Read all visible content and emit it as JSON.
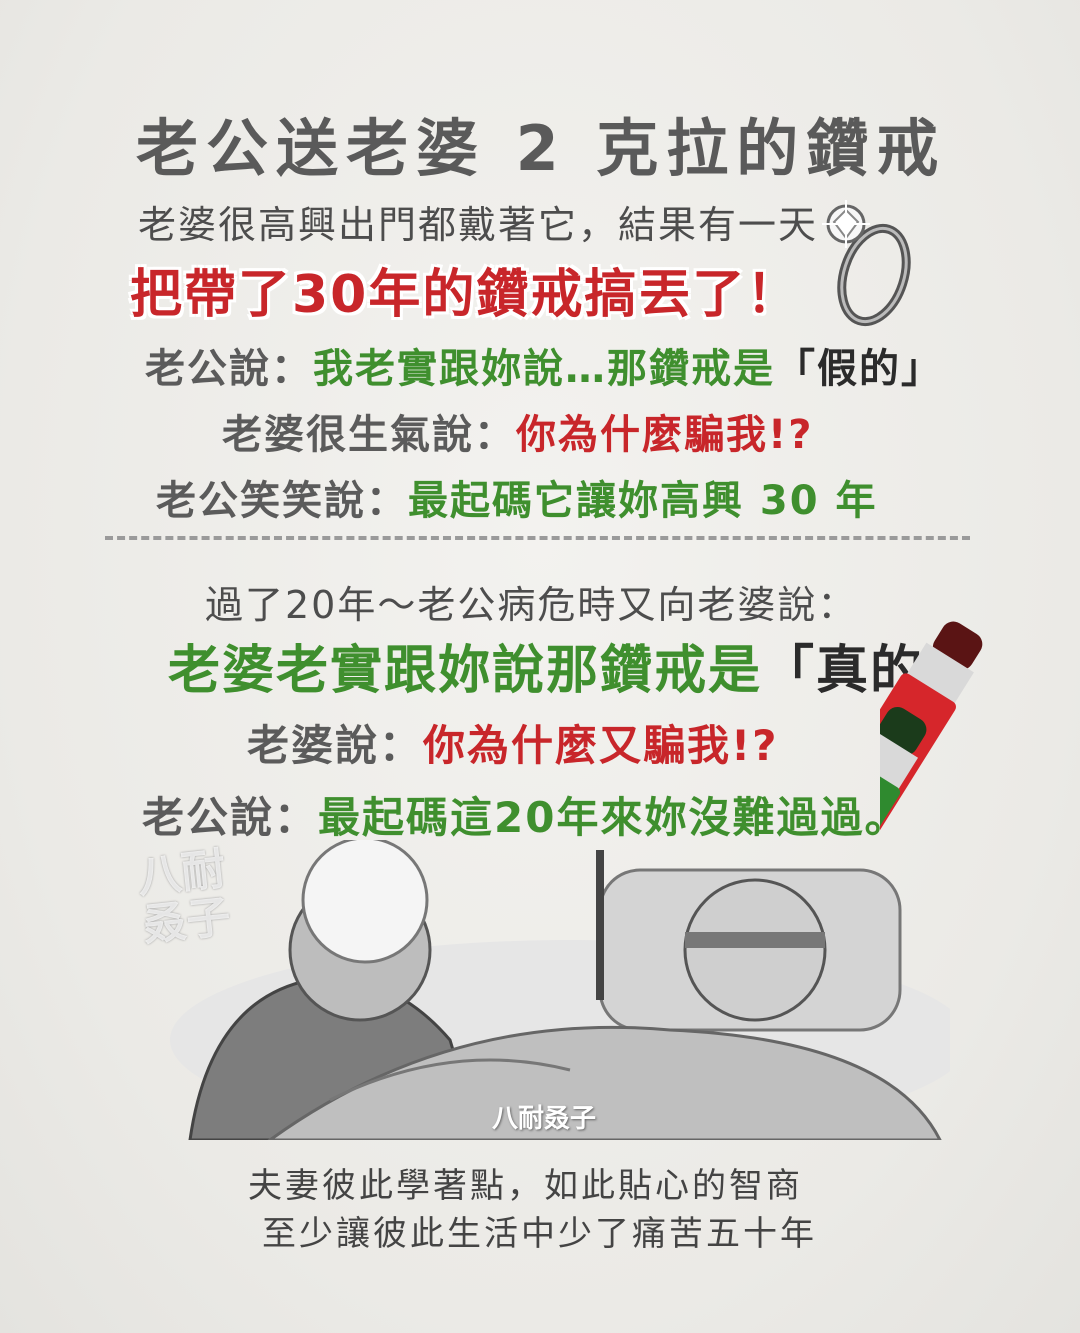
{
  "title": "老公送老婆 2 克拉的鑽戒",
  "intro": "老婆很高興出門都戴著它，結果有一天",
  "lost": "把帶了30年的鑽戒搞丟了！",
  "husband_says_1_label": "老公說：",
  "husband_says_1_text": "我老實跟妳說…那鑽戒是",
  "husband_says_1_quote": "「假的」",
  "wife_says_1_label": "老婆很生氣說：",
  "wife_says_1_text": "你為什麼騙我!?",
  "husband_says_2_label": "老公笑笑說：",
  "husband_says_2_text": "最起碼它讓妳高興 30 年",
  "part2_intro": "過了20年～老公病危時又向老婆說：",
  "part2_confess_text": "老婆老實跟妳說那鑽戒是",
  "part2_confess_quote": "「真的」",
  "wife_says_2_label": "老婆說：",
  "wife_says_2_text": "你為什麼又騙我!?",
  "husband_says_3_label": "老公說：",
  "husband_says_3_text": "最起碼這20年來妳沒難過過。",
  "caption_1": "夫妻彼此學著點，如此貼心的智商",
  "caption_2": "至少讓彼此生活中少了痛苦五十年",
  "watermark_1": "八耐\n叒子",
  "watermark_2": "八耐叒子",
  "colors": {
    "green": "#3f8f2e",
    "red": "#c8262a",
    "gray": "#5b5b5b"
  },
  "icons": [
    "diamond-ring-icon",
    "red-marker-icon",
    "green-marker-icon"
  ]
}
